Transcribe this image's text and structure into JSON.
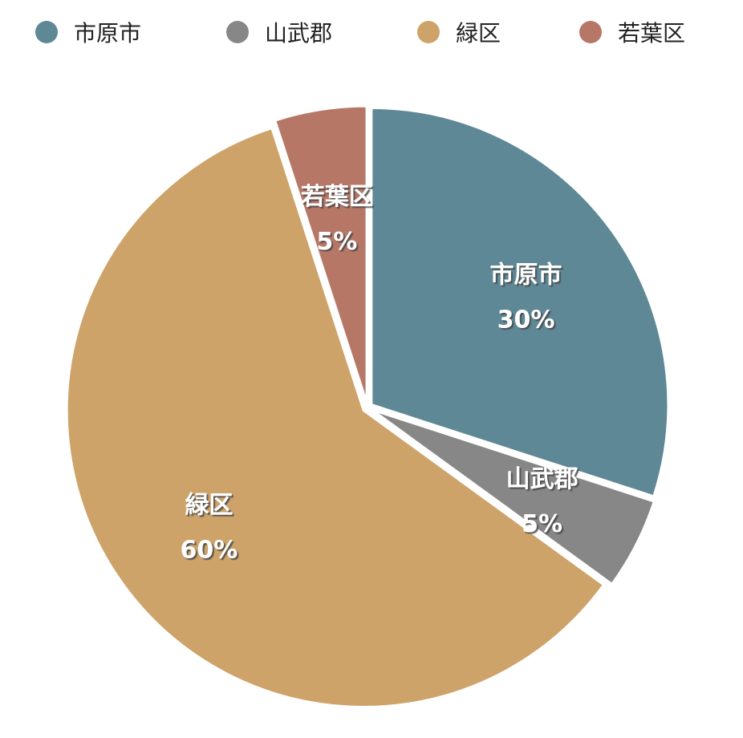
{
  "chart_data": {
    "type": "pie",
    "title": "",
    "legend_position": "top",
    "slices": [
      {
        "label": "市原市",
        "value": 30,
        "display": "30%",
        "color": "#5E8896"
      },
      {
        "label": "山武郡",
        "value": 5,
        "display": "5%",
        "color": "#878787"
      },
      {
        "label": "緑区",
        "value": 60,
        "display": "60%",
        "color": "#CEA36A"
      },
      {
        "label": "若葉区",
        "value": 5,
        "display": "5%",
        "color": "#B77767"
      }
    ]
  }
}
